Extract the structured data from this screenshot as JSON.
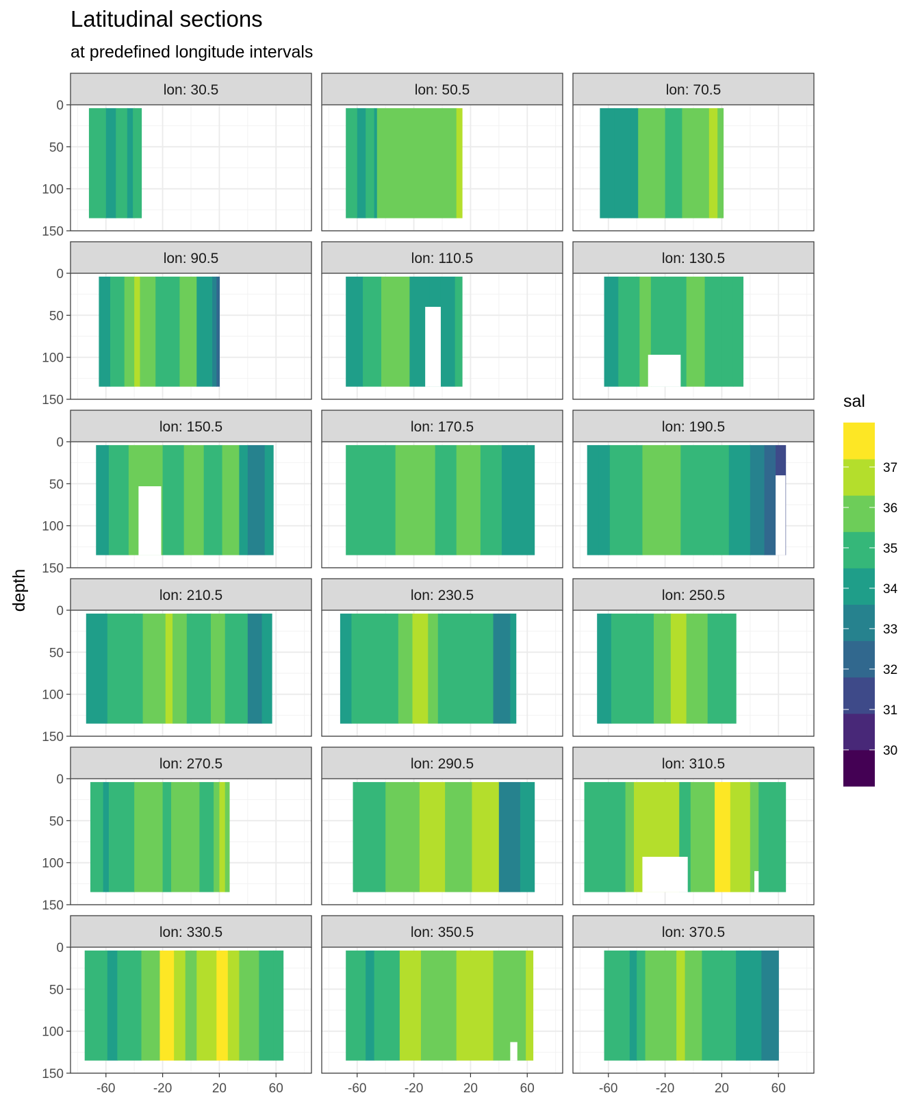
{
  "chart_data": {
    "type": "heatmap",
    "title": "Latitudinal sections",
    "subtitle": "at predefined longitude intervals",
    "xlabel": "",
    "ylabel": "depth",
    "x_ticks": [
      -60,
      -20,
      20,
      60
    ],
    "y_ticks": [
      0,
      50,
      100,
      150
    ],
    "xlim": [
      -85,
      85
    ],
    "ylim": [
      0,
      150
    ],
    "y_reversed": true,
    "legend": {
      "title": "sal",
      "labels": [
        "30",
        "31",
        "32",
        "33",
        "34",
        "35",
        "36",
        "37"
      ],
      "breaks": [
        30,
        31,
        32,
        33,
        34,
        35,
        36,
        37
      ],
      "range": [
        29.1,
        38.1
      ],
      "colors": [
        "#440154",
        "#482878",
        "#3E4A89",
        "#31688E",
        "#26828E",
        "#1F9E89",
        "#35B779",
        "#6DCD59",
        "#B4DE2C",
        "#FDE725"
      ],
      "position": "right"
    },
    "grid": true,
    "facets": [
      {
        "label": "lon: 30.5",
        "lat_range": [
          -72,
          -35
        ],
        "depth_range": [
          4,
          135
        ],
        "bands": [
          [
            -72,
            34.8
          ],
          [
            -60,
            34.3
          ],
          [
            -53,
            34.7
          ],
          [
            -45,
            33.8
          ],
          [
            -41,
            34.9
          ]
        ],
        "gaps": []
      },
      {
        "label": "lon: 50.5",
        "lat_range": [
          -68,
          14
        ],
        "depth_range": [
          4,
          135
        ],
        "bands": [
          [
            -68,
            34.7
          ],
          [
            -60,
            33.8
          ],
          [
            -54,
            34.6
          ],
          [
            -48,
            34.2
          ],
          [
            -46,
            35.7
          ],
          [
            10,
            36.6
          ]
        ],
        "gaps": []
      },
      {
        "label": "lon: 70.5",
        "lat_range": [
          -66,
          21
        ],
        "depth_range": [
          4,
          135
        ],
        "bands": [
          [
            -66,
            33.6
          ],
          [
            -56,
            34.3
          ],
          [
            -44,
            33.8
          ],
          [
            -39,
            35.5
          ],
          [
            -20,
            34.8
          ],
          [
            -8,
            35.6
          ],
          [
            11,
            36.6
          ],
          [
            17,
            36.1
          ]
        ],
        "gaps": []
      },
      {
        "label": "lon: 90.5",
        "lat_range": [
          -65,
          20
        ],
        "depth_range": [
          4,
          135
        ],
        "bands": [
          [
            -65,
            33.9
          ],
          [
            -57,
            34.6
          ],
          [
            -47,
            35.6
          ],
          [
            -40,
            36.8
          ],
          [
            -36,
            35.6
          ],
          [
            -25,
            34.8
          ],
          [
            -8,
            35.5
          ],
          [
            4,
            34.2
          ],
          [
            15,
            33.3
          ],
          [
            18,
            32.6
          ]
        ],
        "gaps": []
      },
      {
        "label": "lon: 110.5",
        "lat_range": [
          -68,
          14
        ],
        "depth_range": [
          4,
          135
        ],
        "bands": [
          [
            -68,
            33.6
          ],
          [
            -60,
            34.3
          ],
          [
            -56,
            34.6
          ],
          [
            -43,
            35.5
          ],
          [
            -23,
            34.5
          ],
          [
            -9,
            33.7
          ],
          [
            -1,
            34.3
          ],
          [
            9,
            34.8
          ]
        ],
        "gaps": [
          [
            -12,
            40,
            -1,
            150
          ],
          [
            -10,
            40,
            -4,
            70
          ]
        ]
      },
      {
        "label": "lon: 130.5",
        "lat_range": [
          -63,
          35
        ],
        "depth_range": [
          4,
          135
        ],
        "bands": [
          [
            -63,
            33.6
          ],
          [
            -53,
            34.6
          ],
          [
            -38,
            35.5
          ],
          [
            -30,
            34.6
          ],
          [
            -5,
            35.5
          ],
          [
            8,
            34.8
          ],
          [
            20,
            35.4
          ],
          [
            28,
            34.6
          ]
        ],
        "gaps": [
          [
            -32,
            97,
            -9,
            150
          ]
        ]
      },
      {
        "label": "lon: 150.5",
        "lat_range": [
          -67,
          58
        ],
        "depth_range": [
          4,
          135
        ],
        "bands": [
          [
            -67,
            33.7
          ],
          [
            -58,
            34.6
          ],
          [
            -44,
            35.7
          ],
          [
            -20,
            34.7
          ],
          [
            -5,
            35.6
          ],
          [
            9,
            34.6
          ],
          [
            22,
            35.5
          ],
          [
            34,
            34.5
          ],
          [
            40,
            33.1
          ],
          [
            52,
            33.6
          ]
        ],
        "gaps": [
          [
            -37,
            53,
            -21,
            150
          ]
        ]
      },
      {
        "label": "lon: 170.5",
        "lat_range": [
          -68,
          65
        ],
        "depth_range": [
          4,
          135
        ],
        "bands": [
          [
            -68,
            34.6
          ],
          [
            -33,
            35.6
          ],
          [
            -5,
            34.7
          ],
          [
            10,
            35.5
          ],
          [
            27,
            34.6
          ],
          [
            42,
            33.8
          ],
          [
            56,
            34.4
          ]
        ],
        "gaps": []
      },
      {
        "label": "lon: 190.5",
        "lat_range": [
          -75,
          65
        ],
        "depth_range": [
          4,
          135
        ],
        "bands": [
          [
            -75,
            34.5
          ],
          [
            -67,
            33.7
          ],
          [
            -59,
            34.6
          ],
          [
            -36,
            35.6
          ],
          [
            -9,
            34.7
          ],
          [
            14,
            35.1
          ],
          [
            25,
            34.4
          ],
          [
            40,
            33.3
          ],
          [
            50,
            32.3
          ],
          [
            58,
            31.8
          ]
        ],
        "gaps": [
          [
            58,
            40,
            65,
            150
          ]
        ]
      },
      {
        "label": "lon: 210.5",
        "lat_range": [
          -74,
          57
        ],
        "depth_range": [
          4,
          135
        ],
        "bands": [
          [
            -74,
            34.4
          ],
          [
            -59,
            34.8
          ],
          [
            -34,
            35.6
          ],
          [
            -18,
            36.5
          ],
          [
            -13,
            35.8
          ],
          [
            -3,
            34.8
          ],
          [
            14,
            35.5
          ],
          [
            24,
            34.6
          ],
          [
            40,
            33.2
          ],
          [
            50,
            33.6
          ]
        ],
        "gaps": []
      },
      {
        "label": "lon: 230.5",
        "lat_range": [
          -72,
          52
        ],
        "depth_range": [
          4,
          135
        ],
        "bands": [
          [
            -72,
            34.0
          ],
          [
            -64,
            34.8
          ],
          [
            -31,
            35.6
          ],
          [
            -21,
            36.6
          ],
          [
            -10,
            35.5
          ],
          [
            -3,
            34.7
          ],
          [
            36,
            33.2
          ],
          [
            48,
            33.6
          ]
        ],
        "gaps": []
      },
      {
        "label": "lon: 250.5",
        "lat_range": [
          -68,
          30
        ],
        "depth_range": [
          4,
          135
        ],
        "bands": [
          [
            -68,
            33.6
          ],
          [
            -58,
            34.6
          ],
          [
            -28,
            35.6
          ],
          [
            -16,
            36.6
          ],
          [
            -5,
            35.6
          ],
          [
            10,
            34.7
          ],
          [
            26,
            35.3
          ]
        ],
        "gaps": []
      },
      {
        "label": "lon: 270.5",
        "lat_range": [
          -71,
          27
        ],
        "depth_range": [
          4,
          135
        ],
        "bands": [
          [
            -71,
            34.6
          ],
          [
            -62,
            33.8
          ],
          [
            -58,
            34.6
          ],
          [
            -40,
            35.6
          ],
          [
            -20,
            34.7
          ],
          [
            -14,
            35.6
          ],
          [
            6,
            34.7
          ],
          [
            16,
            35.5
          ],
          [
            20,
            36.7
          ],
          [
            24,
            35.6
          ]
        ],
        "gaps": []
      },
      {
        "label": "lon: 290.5",
        "lat_range": [
          -63,
          65
        ],
        "depth_range": [
          4,
          135
        ],
        "bands": [
          [
            -63,
            34.6
          ],
          [
            -40,
            35.5
          ],
          [
            -16,
            36.6
          ],
          [
            2,
            35.6
          ],
          [
            21,
            36.6
          ],
          [
            40,
            33.3
          ],
          [
            55,
            34.2
          ]
        ],
        "gaps": []
      },
      {
        "label": "lon: 310.5",
        "lat_range": [
          -77,
          65
        ],
        "depth_range": [
          4,
          135
        ],
        "bands": [
          [
            -77,
            34.7
          ],
          [
            -48,
            35.6
          ],
          [
            -42,
            36.6
          ],
          [
            -10,
            34.7
          ],
          [
            -2,
            35.6
          ],
          [
            15,
            37.6
          ],
          [
            26,
            36.6
          ],
          [
            40,
            35.6
          ],
          [
            46,
            34.6
          ],
          [
            54,
            35.2
          ]
        ],
        "gaps": [
          [
            -36,
            93,
            -4,
            150
          ],
          [
            43,
            110,
            46,
            150
          ]
        ]
      },
      {
        "label": "lon: 330.5",
        "lat_range": [
          -75,
          65
        ],
        "depth_range": [
          4,
          135
        ],
        "bands": [
          [
            -75,
            34.7
          ],
          [
            -59,
            34.3
          ],
          [
            -52,
            34.7
          ],
          [
            -35,
            35.6
          ],
          [
            -22,
            37.6
          ],
          [
            -12,
            36.6
          ],
          [
            -4,
            36.1
          ],
          [
            4,
            36.6
          ],
          [
            18,
            37.7
          ],
          [
            26,
            36.6
          ],
          [
            34,
            35.6
          ],
          [
            48,
            34.7
          ],
          [
            58,
            35.3
          ]
        ],
        "gaps": []
      },
      {
        "label": "lon: 350.5",
        "lat_range": [
          -68,
          64
        ],
        "depth_range": [
          4,
          135
        ],
        "bands": [
          [
            -68,
            34.7
          ],
          [
            -54,
            33.8
          ],
          [
            -48,
            34.7
          ],
          [
            -30,
            36.6
          ],
          [
            -15,
            35.6
          ],
          [
            10,
            36.6
          ],
          [
            36,
            35.6
          ],
          [
            59,
            36.6
          ]
        ],
        "gaps": [
          [
            48,
            113,
            53,
            150
          ]
        ]
      },
      {
        "label": "lon: 370.5",
        "lat_range": [
          -63,
          60
        ],
        "depth_range": [
          4,
          135
        ],
        "bands": [
          [
            -63,
            34.7
          ],
          [
            -45,
            33.8
          ],
          [
            -40,
            34.6
          ],
          [
            -34,
            35.6
          ],
          [
            -12,
            36.5
          ],
          [
            -6,
            35.6
          ],
          [
            6,
            34.8
          ],
          [
            30,
            33.6
          ],
          [
            48,
            33.2
          ]
        ],
        "gaps": []
      }
    ]
  }
}
